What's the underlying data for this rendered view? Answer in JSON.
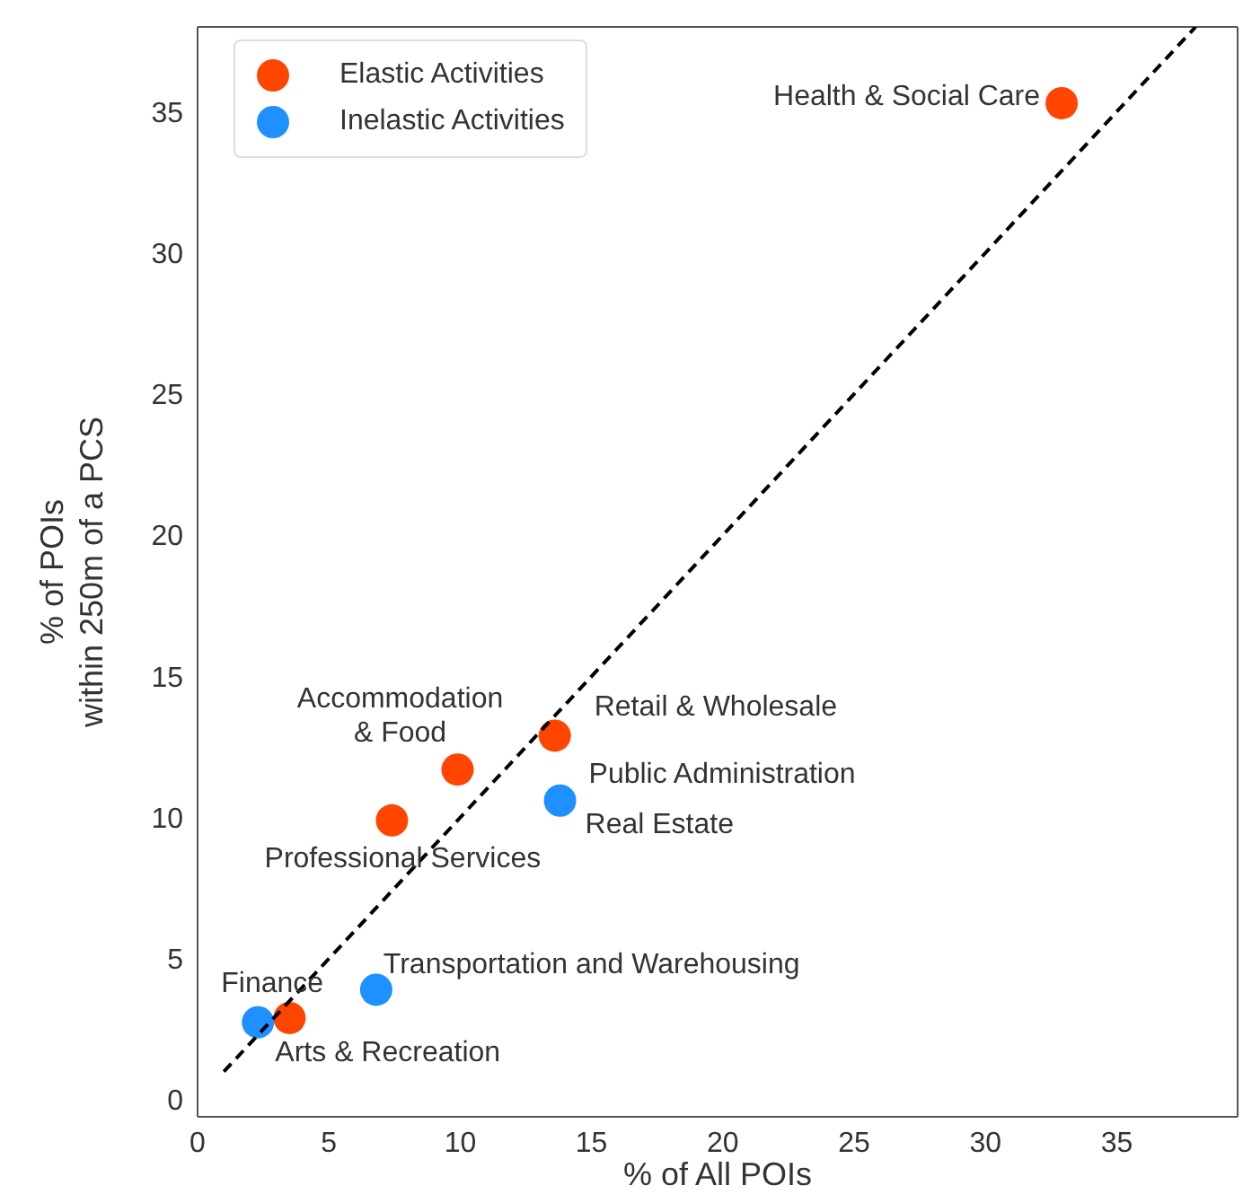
{
  "chart_data": {
    "type": "scatter",
    "xlabel": "% of All POIs",
    "ylabel": "% of POIs\nwithin 250m of a PCS",
    "xlim": [
      0,
      39.6
    ],
    "ylim": [
      -0.6,
      38
    ],
    "xticks": [
      0,
      5,
      10,
      15,
      20,
      25,
      30,
      35
    ],
    "yticks": [
      0,
      5,
      10,
      15,
      20,
      25,
      30,
      35
    ],
    "legend": "top left",
    "marker": "circle",
    "series": [
      {
        "name": "Elastic Activities",
        "color": "#ff4500",
        "x": [
          32.9,
          13.6,
          9.9,
          7.4,
          3.5
        ],
        "values": [
          35.3,
          12.9,
          11.7,
          9.9,
          2.9
        ]
      },
      {
        "name": "Inelastic Activities",
        "color": "#1e90ff",
        "x": [
          13.8,
          6.8,
          2.3
        ],
        "values": [
          10.6,
          3.9,
          2.75
        ]
      },
      {
        "type": "line",
        "color": "#000000",
        "line_style": "dashed",
        "marker": "none",
        "x": [
          1,
          38
        ],
        "values": [
          1,
          38
        ]
      }
    ],
    "annotations": [
      {
        "text": "Health & Social Care",
        "x": 32.9,
        "y": 35.3
      },
      {
        "text": "Retail & Wholesale",
        "x": 13.6,
        "y": 12.9
      },
      {
        "text": "Accommodation\n& Food",
        "x": 9.9,
        "y": 11.7
      },
      {
        "text": "Public Administration",
        "x": 13.8,
        "y": 10.6
      },
      {
        "text": "Real Estate",
        "x": 13.8,
        "y": 10.6
      },
      {
        "text": "Professional Services",
        "x": 7.4,
        "y": 9.9
      },
      {
        "text": "Transportation and Warehousing",
        "x": 6.8,
        "y": 3.9
      },
      {
        "text": "Finance",
        "x": 2.3,
        "y": 2.75
      },
      {
        "text": "Arts & Recreation",
        "x": 3.5,
        "y": 2.9
      }
    ]
  }
}
